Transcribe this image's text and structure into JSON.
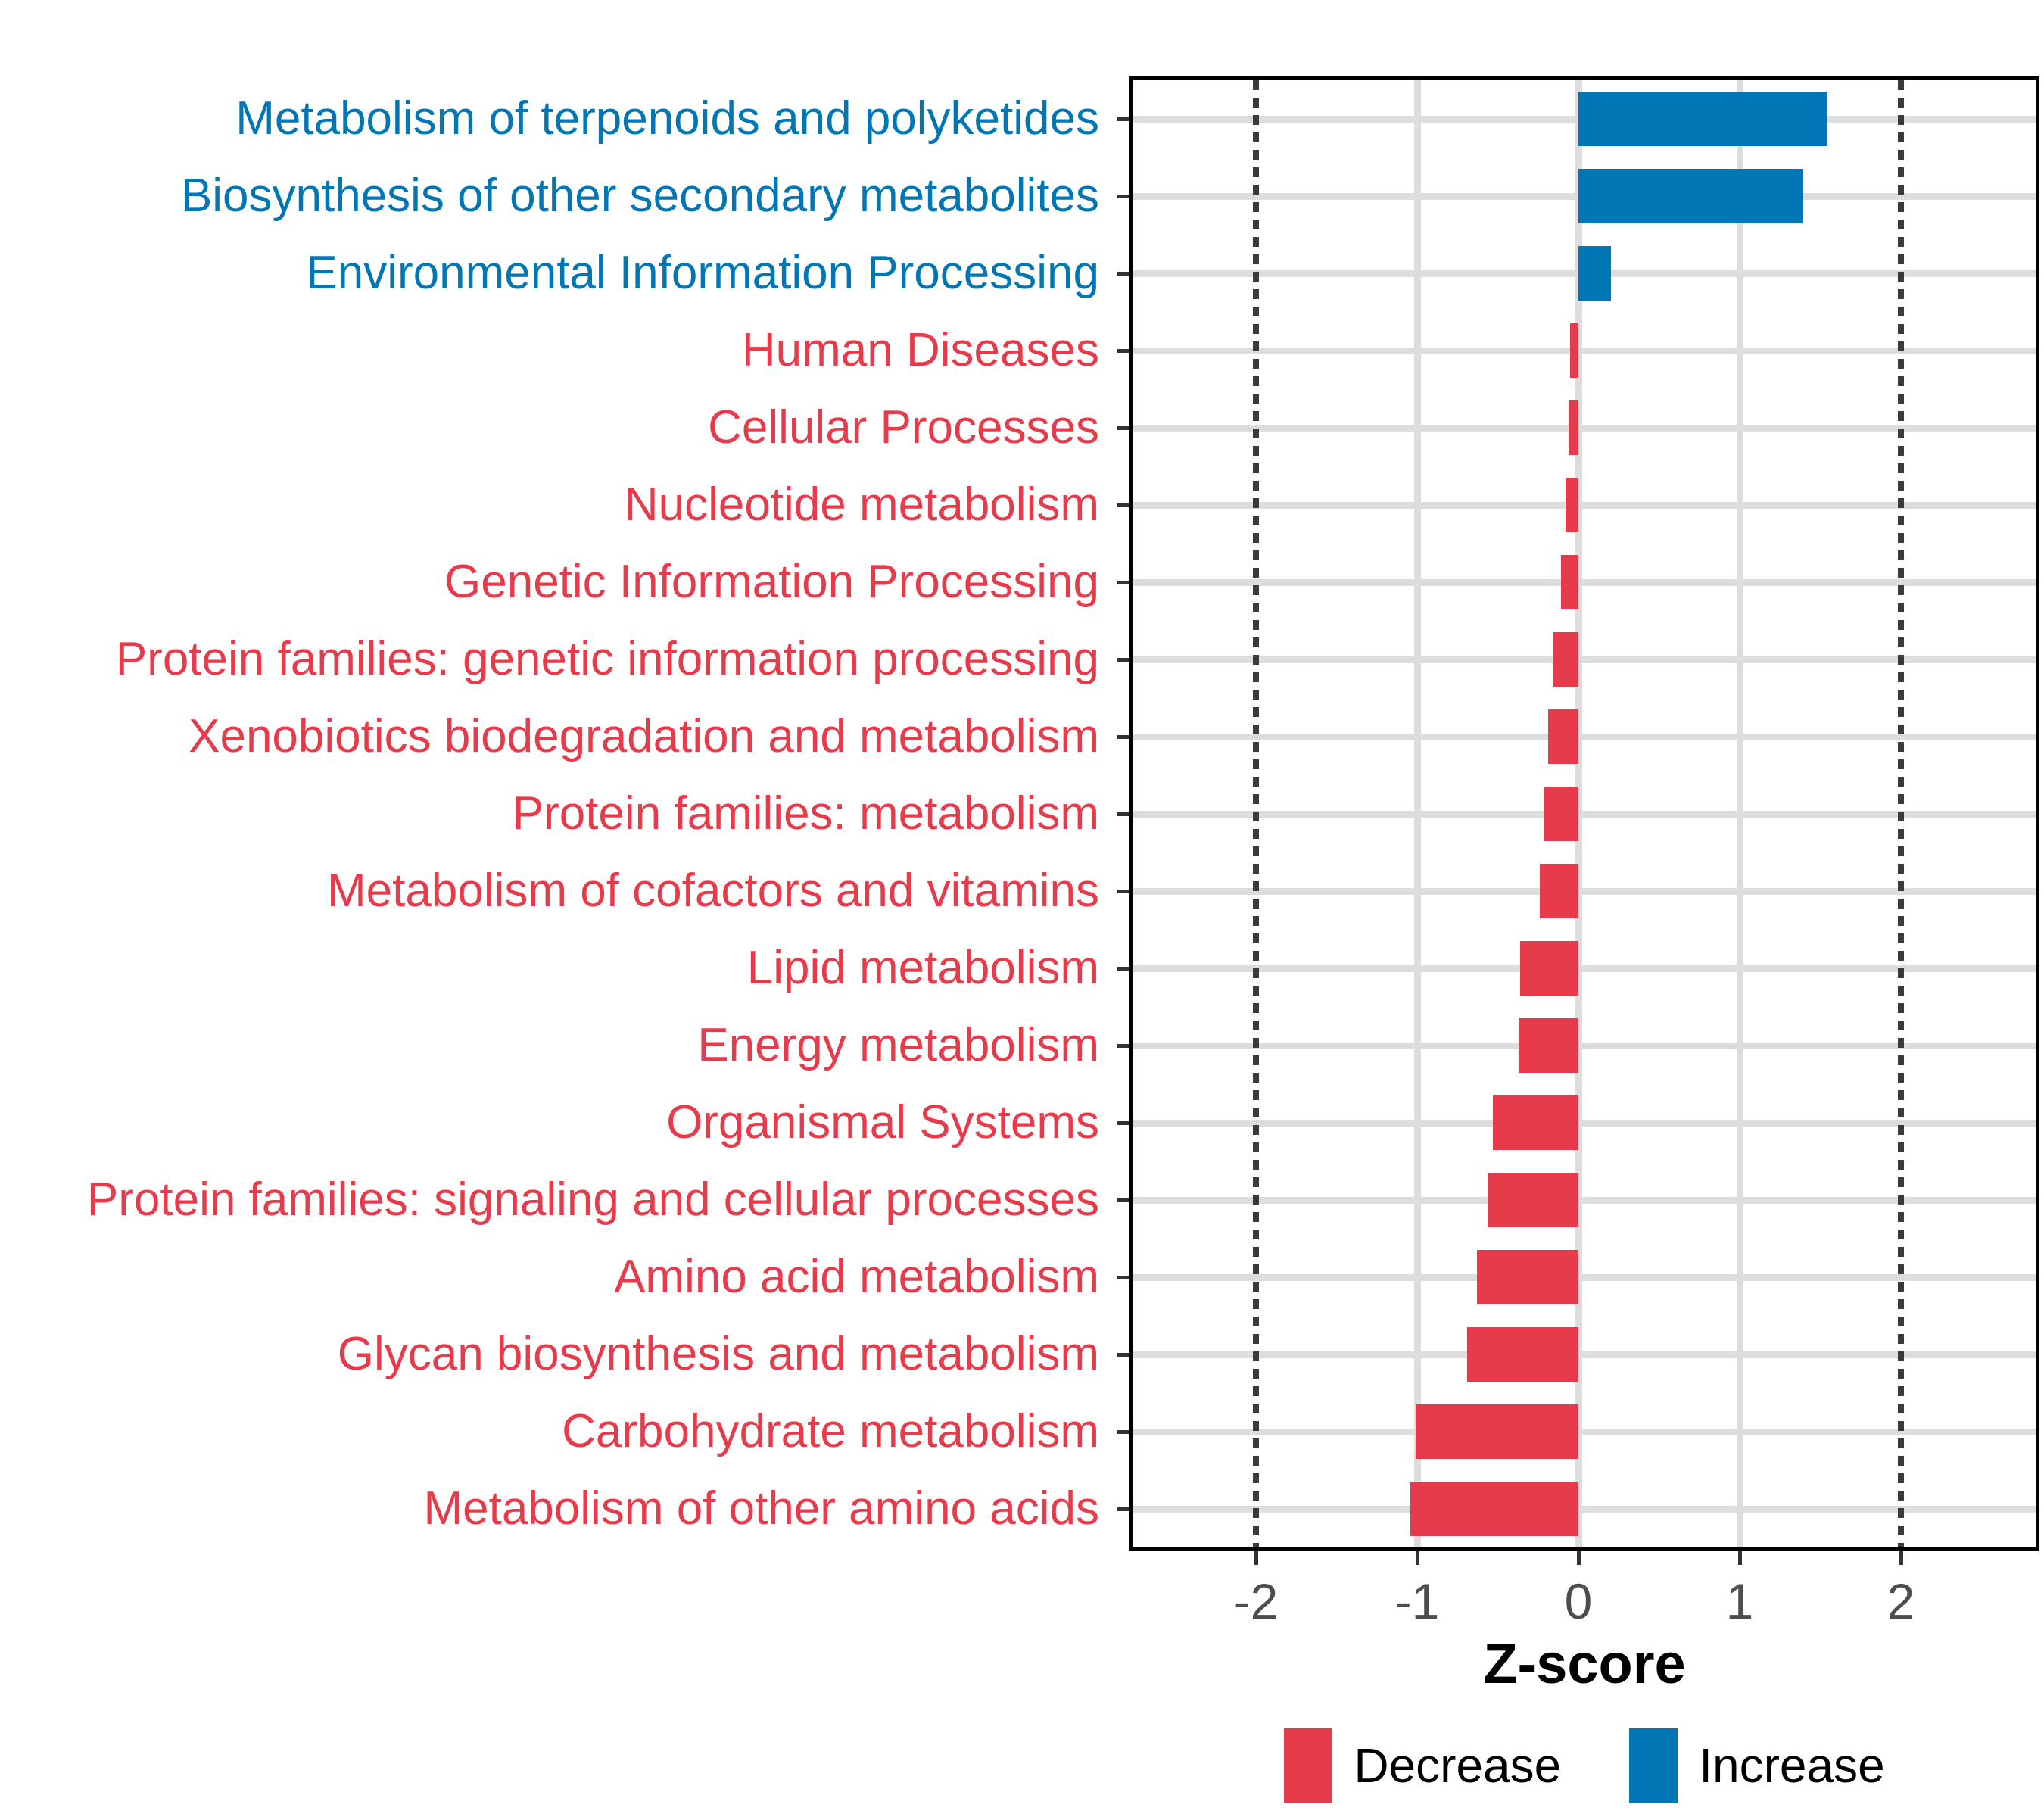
{
  "chart_data": {
    "type": "bar",
    "orientation": "horizontal",
    "title": "",
    "xlabel": "Z-score",
    "x_tick_labels": [
      "-2",
      "-1",
      "0",
      "1",
      "2"
    ],
    "x_tick_values": [
      -2,
      -1,
      0,
      1,
      2
    ],
    "xlim": [
      -2.76,
      2.84
    ],
    "reference_lines": [
      -2,
      2
    ],
    "grid": "solid vertical gridlines at -1,0,1; horizontal gridline per category; dotted reference lines at -2 and 2",
    "legend_position": "bottom",
    "bars": [
      {
        "label": "Metabolism of terpenoids and polyketides",
        "value": 1.54,
        "direction": "increase"
      },
      {
        "label": "Biosynthesis of other secondary metabolites",
        "value": 1.39,
        "direction": "increase"
      },
      {
        "label": "Environmental Information Processing",
        "value": 0.2,
        "direction": "increase"
      },
      {
        "label": "Human Diseases",
        "value": -0.05,
        "direction": "decrease"
      },
      {
        "label": "Cellular Processes",
        "value": -0.06,
        "direction": "decrease"
      },
      {
        "label": "Nucleotide metabolism",
        "value": -0.08,
        "direction": "decrease"
      },
      {
        "label": "Genetic Information Processing",
        "value": -0.11,
        "direction": "decrease"
      },
      {
        "label": "Protein families: genetic information processing",
        "value": -0.16,
        "direction": "decrease"
      },
      {
        "label": "Xenobiotics biodegradation and metabolism",
        "value": -0.19,
        "direction": "decrease"
      },
      {
        "label": "Protein families: metabolism",
        "value": -0.21,
        "direction": "decrease"
      },
      {
        "label": "Metabolism of cofactors and vitamins",
        "value": -0.24,
        "direction": "decrease"
      },
      {
        "label": "Lipid metabolism",
        "value": -0.36,
        "direction": "decrease"
      },
      {
        "label": "Energy metabolism",
        "value": -0.37,
        "direction": "decrease"
      },
      {
        "label": "Organismal Systems",
        "value": -0.53,
        "direction": "decrease"
      },
      {
        "label": "Protein families: signaling and cellular processes",
        "value": -0.56,
        "direction": "decrease"
      },
      {
        "label": "Amino acid metabolism",
        "value": -0.63,
        "direction": "decrease"
      },
      {
        "label": "Glycan biosynthesis and metabolism",
        "value": -0.69,
        "direction": "decrease"
      },
      {
        "label": "Carbohydrate metabolism",
        "value": -1.01,
        "direction": "decrease"
      },
      {
        "label": "Metabolism of other amino acids",
        "value": -1.04,
        "direction": "decrease"
      }
    ],
    "legend": [
      {
        "label": "Decrease",
        "key": "decrease"
      },
      {
        "label": "Increase",
        "key": "increase"
      }
    ]
  },
  "colors": {
    "decrease": "#E73B4B",
    "increase": "#0076B5",
    "gridline": "#DDDDDD",
    "reference_line": "#3A3A3A",
    "tick": "#333333",
    "tick_label": "#4D4D4D",
    "panel_border": "#000000",
    "background": "#FFFFFF"
  }
}
